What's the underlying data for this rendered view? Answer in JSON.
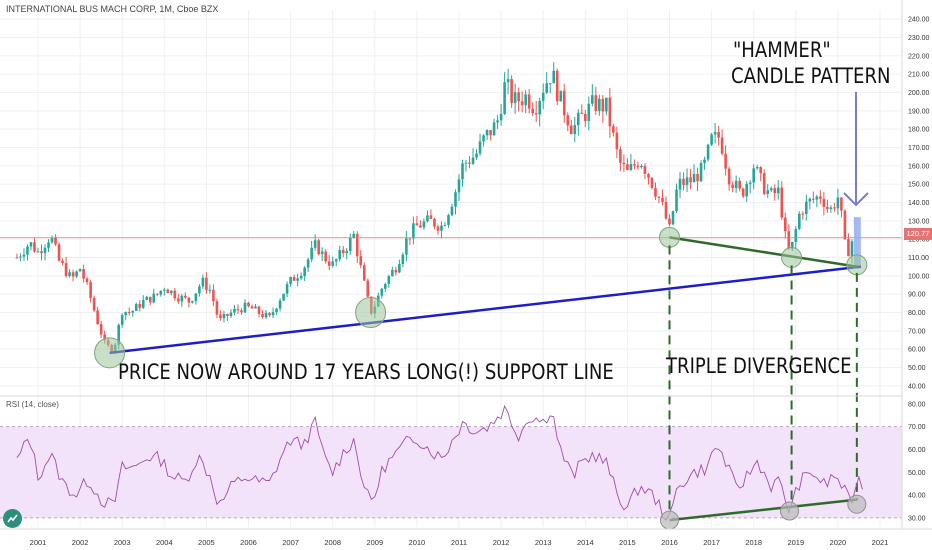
{
  "header": {
    "title": "INTERNATIONAL BUS MACH CORP, 1M, Cboe BZX",
    "rsi_label": "RSI (14, close)",
    "last_price_tag": "120.77"
  },
  "annotations": {
    "support": "PRICE NOW AROUND 17 YEARS LONG(!) SUPPORT LINE",
    "divergence": "TRIPLE DIVERGENCE",
    "hammer_line1": "\"HAMMER\"",
    "hammer_line2": "CANDLE PATTERN"
  },
  "icons": {
    "logo": "tradingview-logo-icon",
    "arrow": "down-arrow-icon"
  },
  "colors": {
    "up": "#26a69a",
    "down": "#ef5350",
    "support_line": "#1e1ec8",
    "divergence_line": "#2e6b2a",
    "rsi_line": "#9c4fa8",
    "rsi_band": "#f3e3fa",
    "marker": "#9ec49a",
    "price_line": "#e57373",
    "arrow": "#7b7fbf",
    "hammer": "#8fa8ee"
  },
  "chart_data": [
    {
      "type": "candlestick",
      "title": "INTERNATIONAL BUS MACH CORP, 1M, Cboe BZX",
      "x_ticks": [
        "2001",
        "2002",
        "2003",
        "2004",
        "2005",
        "2006",
        "2007",
        "2008",
        "2009",
        "2010",
        "2011",
        "2012",
        "2013",
        "2014",
        "2015",
        "2016",
        "2017",
        "2018",
        "2019",
        "2020",
        "2021"
      ],
      "y_ticks": [
        40,
        50,
        60,
        70,
        80,
        90,
        100,
        110,
        120,
        130,
        140,
        150,
        160,
        170,
        180,
        190,
        200,
        210,
        220,
        230,
        240
      ],
      "ylim": [
        35,
        245
      ],
      "close_path": [
        [
          2000.5,
          110
        ],
        [
          2000.8,
          118
        ],
        [
          2001.0,
          113
        ],
        [
          2001.3,
          122
        ],
        [
          2001.5,
          108
        ],
        [
          2001.8,
          98
        ],
        [
          2002.0,
          104
        ],
        [
          2002.2,
          92
        ],
        [
          2002.4,
          76
        ],
        [
          2002.6,
          62
        ],
        [
          2002.8,
          60
        ],
        [
          2003.0,
          81
        ],
        [
          2003.2,
          80
        ],
        [
          2003.5,
          86
        ],
        [
          2003.8,
          89
        ],
        [
          2004.0,
          94
        ],
        [
          2004.3,
          89
        ],
        [
          2004.6,
          86
        ],
        [
          2004.9,
          97
        ],
        [
          2005.1,
          92
        ],
        [
          2005.3,
          75
        ],
        [
          2005.6,
          80
        ],
        [
          2005.9,
          83
        ],
        [
          2006.1,
          82
        ],
        [
          2006.3,
          79
        ],
        [
          2006.5,
          77
        ],
        [
          2006.8,
          90
        ],
        [
          2007.0,
          97
        ],
        [
          2007.3,
          104
        ],
        [
          2007.6,
          117
        ],
        [
          2007.8,
          110
        ],
        [
          2008.0,
          106
        ],
        [
          2008.3,
          115
        ],
        [
          2008.5,
          122
        ],
        [
          2008.8,
          90
        ],
        [
          2008.9,
          80
        ],
        [
          2009.0,
          84
        ],
        [
          2009.2,
          95
        ],
        [
          2009.5,
          105
        ],
        [
          2009.8,
          122
        ],
        [
          2010.0,
          127
        ],
        [
          2010.3,
          130
        ],
        [
          2010.6,
          127
        ],
        [
          2010.9,
          145
        ],
        [
          2011.1,
          161
        ],
        [
          2011.4,
          166
        ],
        [
          2011.6,
          175
        ],
        [
          2011.9,
          183
        ],
        [
          2012.1,
          205
        ],
        [
          2012.3,
          195
        ],
        [
          2012.6,
          198
        ],
        [
          2012.8,
          192
        ],
        [
          2013.0,
          203
        ],
        [
          2013.2,
          211
        ],
        [
          2013.4,
          196
        ],
        [
          2013.7,
          180
        ],
        [
          2013.9,
          186
        ],
        [
          2014.2,
          194
        ],
        [
          2014.5,
          192
        ],
        [
          2014.8,
          162
        ],
        [
          2015.0,
          156
        ],
        [
          2015.3,
          164
        ],
        [
          2015.5,
          155
        ],
        [
          2015.8,
          140
        ],
        [
          2016.0,
          125
        ],
        [
          2016.2,
          150
        ],
        [
          2016.5,
          152
        ],
        [
          2016.8,
          158
        ],
        [
          2017.0,
          174
        ],
        [
          2017.2,
          176
        ],
        [
          2017.4,
          155
        ],
        [
          2017.7,
          144
        ],
        [
          2018.0,
          160
        ],
        [
          2018.2,
          150
        ],
        [
          2018.4,
          144
        ],
        [
          2018.6,
          146
        ],
        [
          2018.8,
          113
        ],
        [
          2018.9,
          115
        ],
        [
          2019.1,
          135
        ],
        [
          2019.3,
          140
        ],
        [
          2019.6,
          144
        ],
        [
          2019.8,
          135
        ],
        [
          2020.0,
          143
        ],
        [
          2020.1,
          130
        ],
        [
          2020.2,
          110
        ],
        [
          2020.3,
          118
        ],
        [
          2020.4,
          121
        ]
      ],
      "last_price": 120.77,
      "support_line": {
        "from": [
          2002.7,
          58
        ],
        "to": [
          2020.55,
          105
        ]
      },
      "divergence_price_line": {
        "from": [
          2016.0,
          121
        ],
        "to": [
          2020.45,
          105
        ]
      }
    },
    {
      "type": "line",
      "title": "RSI (14, close)",
      "y_ticks": [
        30,
        40,
        50,
        60,
        70,
        80
      ],
      "ylim": [
        26,
        83
      ],
      "band": [
        30,
        70
      ],
      "series": [
        {
          "values_path": [
            [
              2000.5,
              55
            ],
            [
              2000.8,
              66
            ],
            [
              2001.0,
              48
            ],
            [
              2001.3,
              58
            ],
            [
              2001.6,
              45
            ],
            [
              2001.9,
              40
            ],
            [
              2002.2,
              47
            ],
            [
              2002.5,
              38
            ],
            [
              2002.8,
              35
            ],
            [
              2003.0,
              52
            ],
            [
              2003.3,
              52
            ],
            [
              2003.6,
              57
            ],
            [
              2003.9,
              56
            ],
            [
              2004.2,
              48
            ],
            [
              2004.5,
              46
            ],
            [
              2004.8,
              57
            ],
            [
              2005.1,
              48
            ],
            [
              2005.3,
              35
            ],
            [
              2005.6,
              44
            ],
            [
              2005.9,
              48
            ],
            [
              2006.2,
              46
            ],
            [
              2006.5,
              45
            ],
            [
              2006.8,
              58
            ],
            [
              2007.0,
              64
            ],
            [
              2007.3,
              62
            ],
            [
              2007.6,
              72
            ],
            [
              2007.8,
              56
            ],
            [
              2008.0,
              50
            ],
            [
              2008.3,
              60
            ],
            [
              2008.5,
              64
            ],
            [
              2008.8,
              40
            ],
            [
              2008.95,
              37
            ],
            [
              2009.2,
              52
            ],
            [
              2009.5,
              58
            ],
            [
              2009.8,
              64
            ],
            [
              2010.0,
              65
            ],
            [
              2010.3,
              60
            ],
            [
              2010.6,
              56
            ],
            [
              2010.9,
              66
            ],
            [
              2011.1,
              72
            ],
            [
              2011.4,
              68
            ],
            [
              2011.7,
              70
            ],
            [
              2011.9,
              74
            ],
            [
              2012.1,
              78
            ],
            [
              2012.4,
              66
            ],
            [
              2012.7,
              75
            ],
            [
              2013.0,
              72
            ],
            [
              2013.2,
              78
            ],
            [
              2013.4,
              60
            ],
            [
              2013.7,
              48
            ],
            [
              2013.9,
              54
            ],
            [
              2014.2,
              58
            ],
            [
              2014.5,
              54
            ],
            [
              2014.8,
              38
            ],
            [
              2015.0,
              35
            ],
            [
              2015.3,
              44
            ],
            [
              2015.6,
              40
            ],
            [
              2015.8,
              34
            ],
            [
              2016.0,
              29
            ],
            [
              2016.2,
              44
            ],
            [
              2016.6,
              50
            ],
            [
              2016.9,
              52
            ],
            [
              2017.1,
              62
            ],
            [
              2017.3,
              56
            ],
            [
              2017.6,
              42
            ],
            [
              2017.9,
              50
            ],
            [
              2018.1,
              55
            ],
            [
              2018.4,
              44
            ],
            [
              2018.6,
              46
            ],
            [
              2018.85,
              33
            ],
            [
              2019.1,
              46
            ],
            [
              2019.4,
              50
            ],
            [
              2019.7,
              44
            ],
            [
              2019.9,
              49
            ],
            [
              2020.1,
              44
            ],
            [
              2020.3,
              36
            ],
            [
              2020.45,
              47
            ],
            [
              2020.6,
              45
            ]
          ]
        }
      ],
      "divergence_rsi_line": {
        "from": [
          2016.0,
          29
        ],
        "to": [
          2020.45,
          38
        ]
      }
    }
  ]
}
